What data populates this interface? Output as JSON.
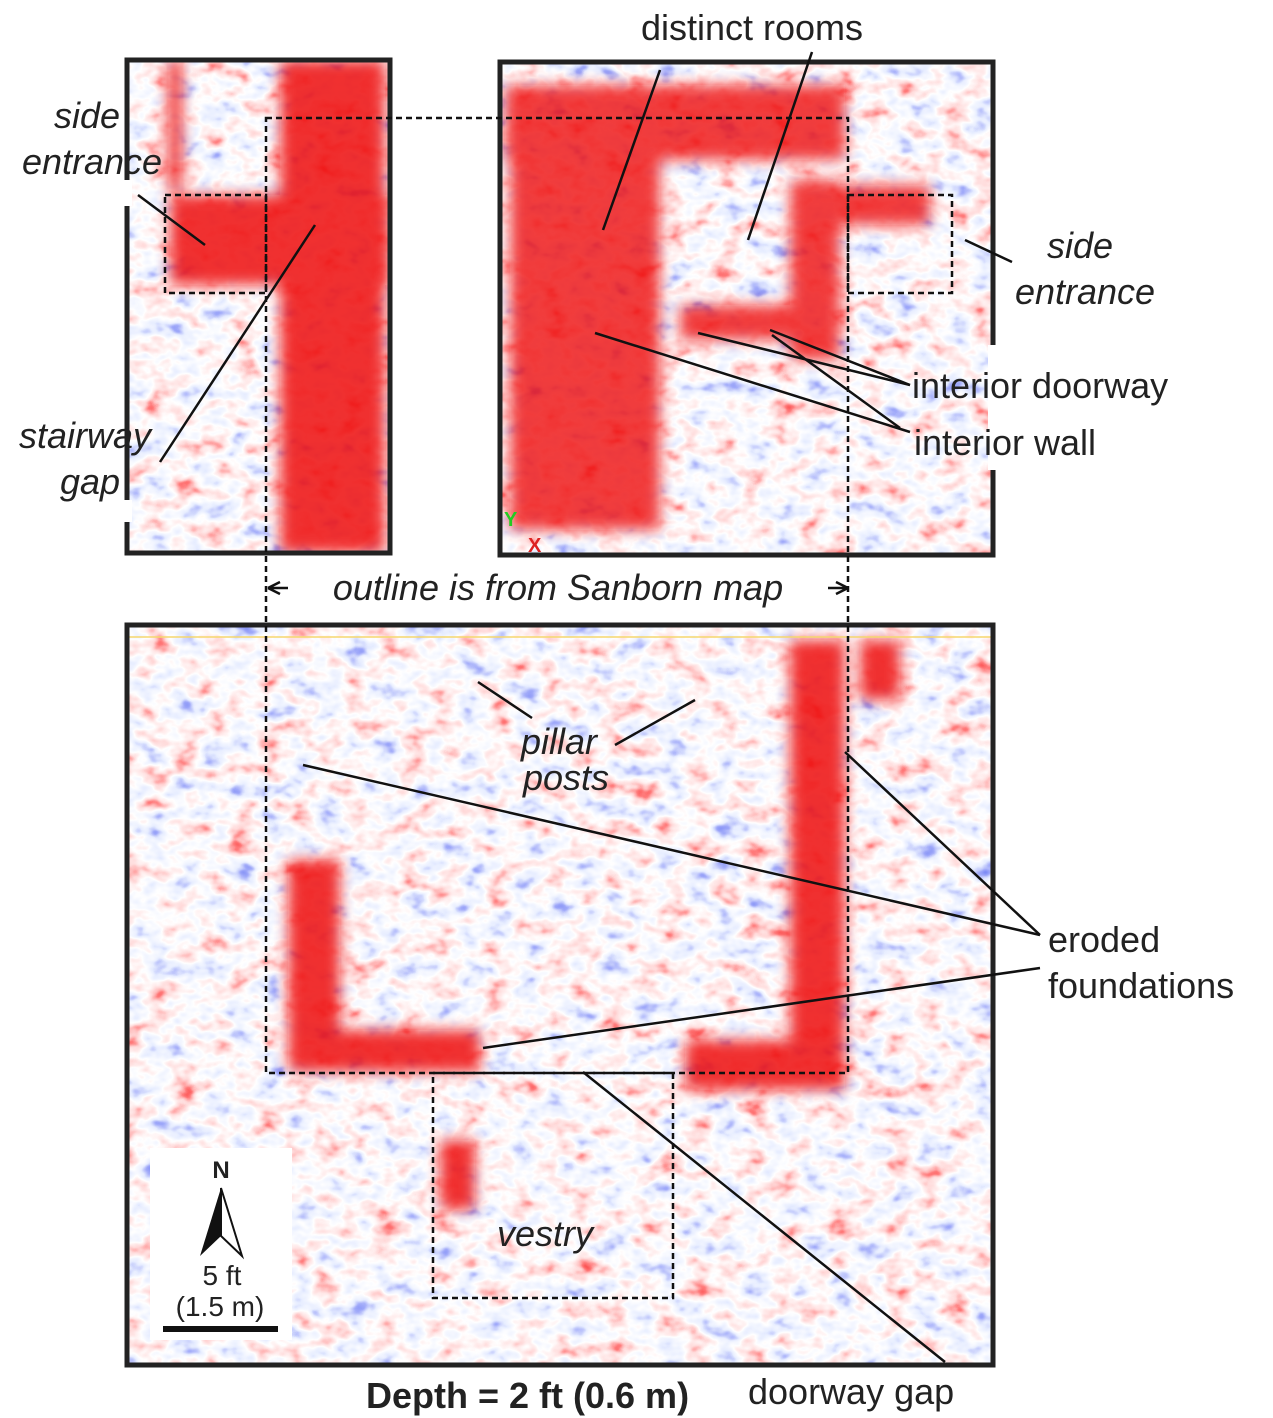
{
  "title": "Depth = 2 ft (0.6 m)",
  "labels": {
    "distinct_rooms": "distinct rooms",
    "side_entrance_left": [
      "side",
      "entrance"
    ],
    "stairway_gap": [
      "stairway",
      "gap"
    ],
    "side_entrance_right": [
      "side",
      "entrance"
    ],
    "interior_doorway": "interior doorway",
    "interior_wall": "interior wall",
    "outline_note": "outline is from Sanborn map",
    "pillar_posts": [
      "pillar",
      "posts"
    ],
    "eroded_foundations": [
      "eroded",
      "foundations"
    ],
    "vestry": "vestry",
    "doorway_gap": "doorway gap"
  },
  "axes": {
    "y": "Y",
    "x": "X"
  },
  "scale": {
    "north": "N",
    "distance": "5 ft",
    "distance_metric": "(1.5 m)"
  }
}
